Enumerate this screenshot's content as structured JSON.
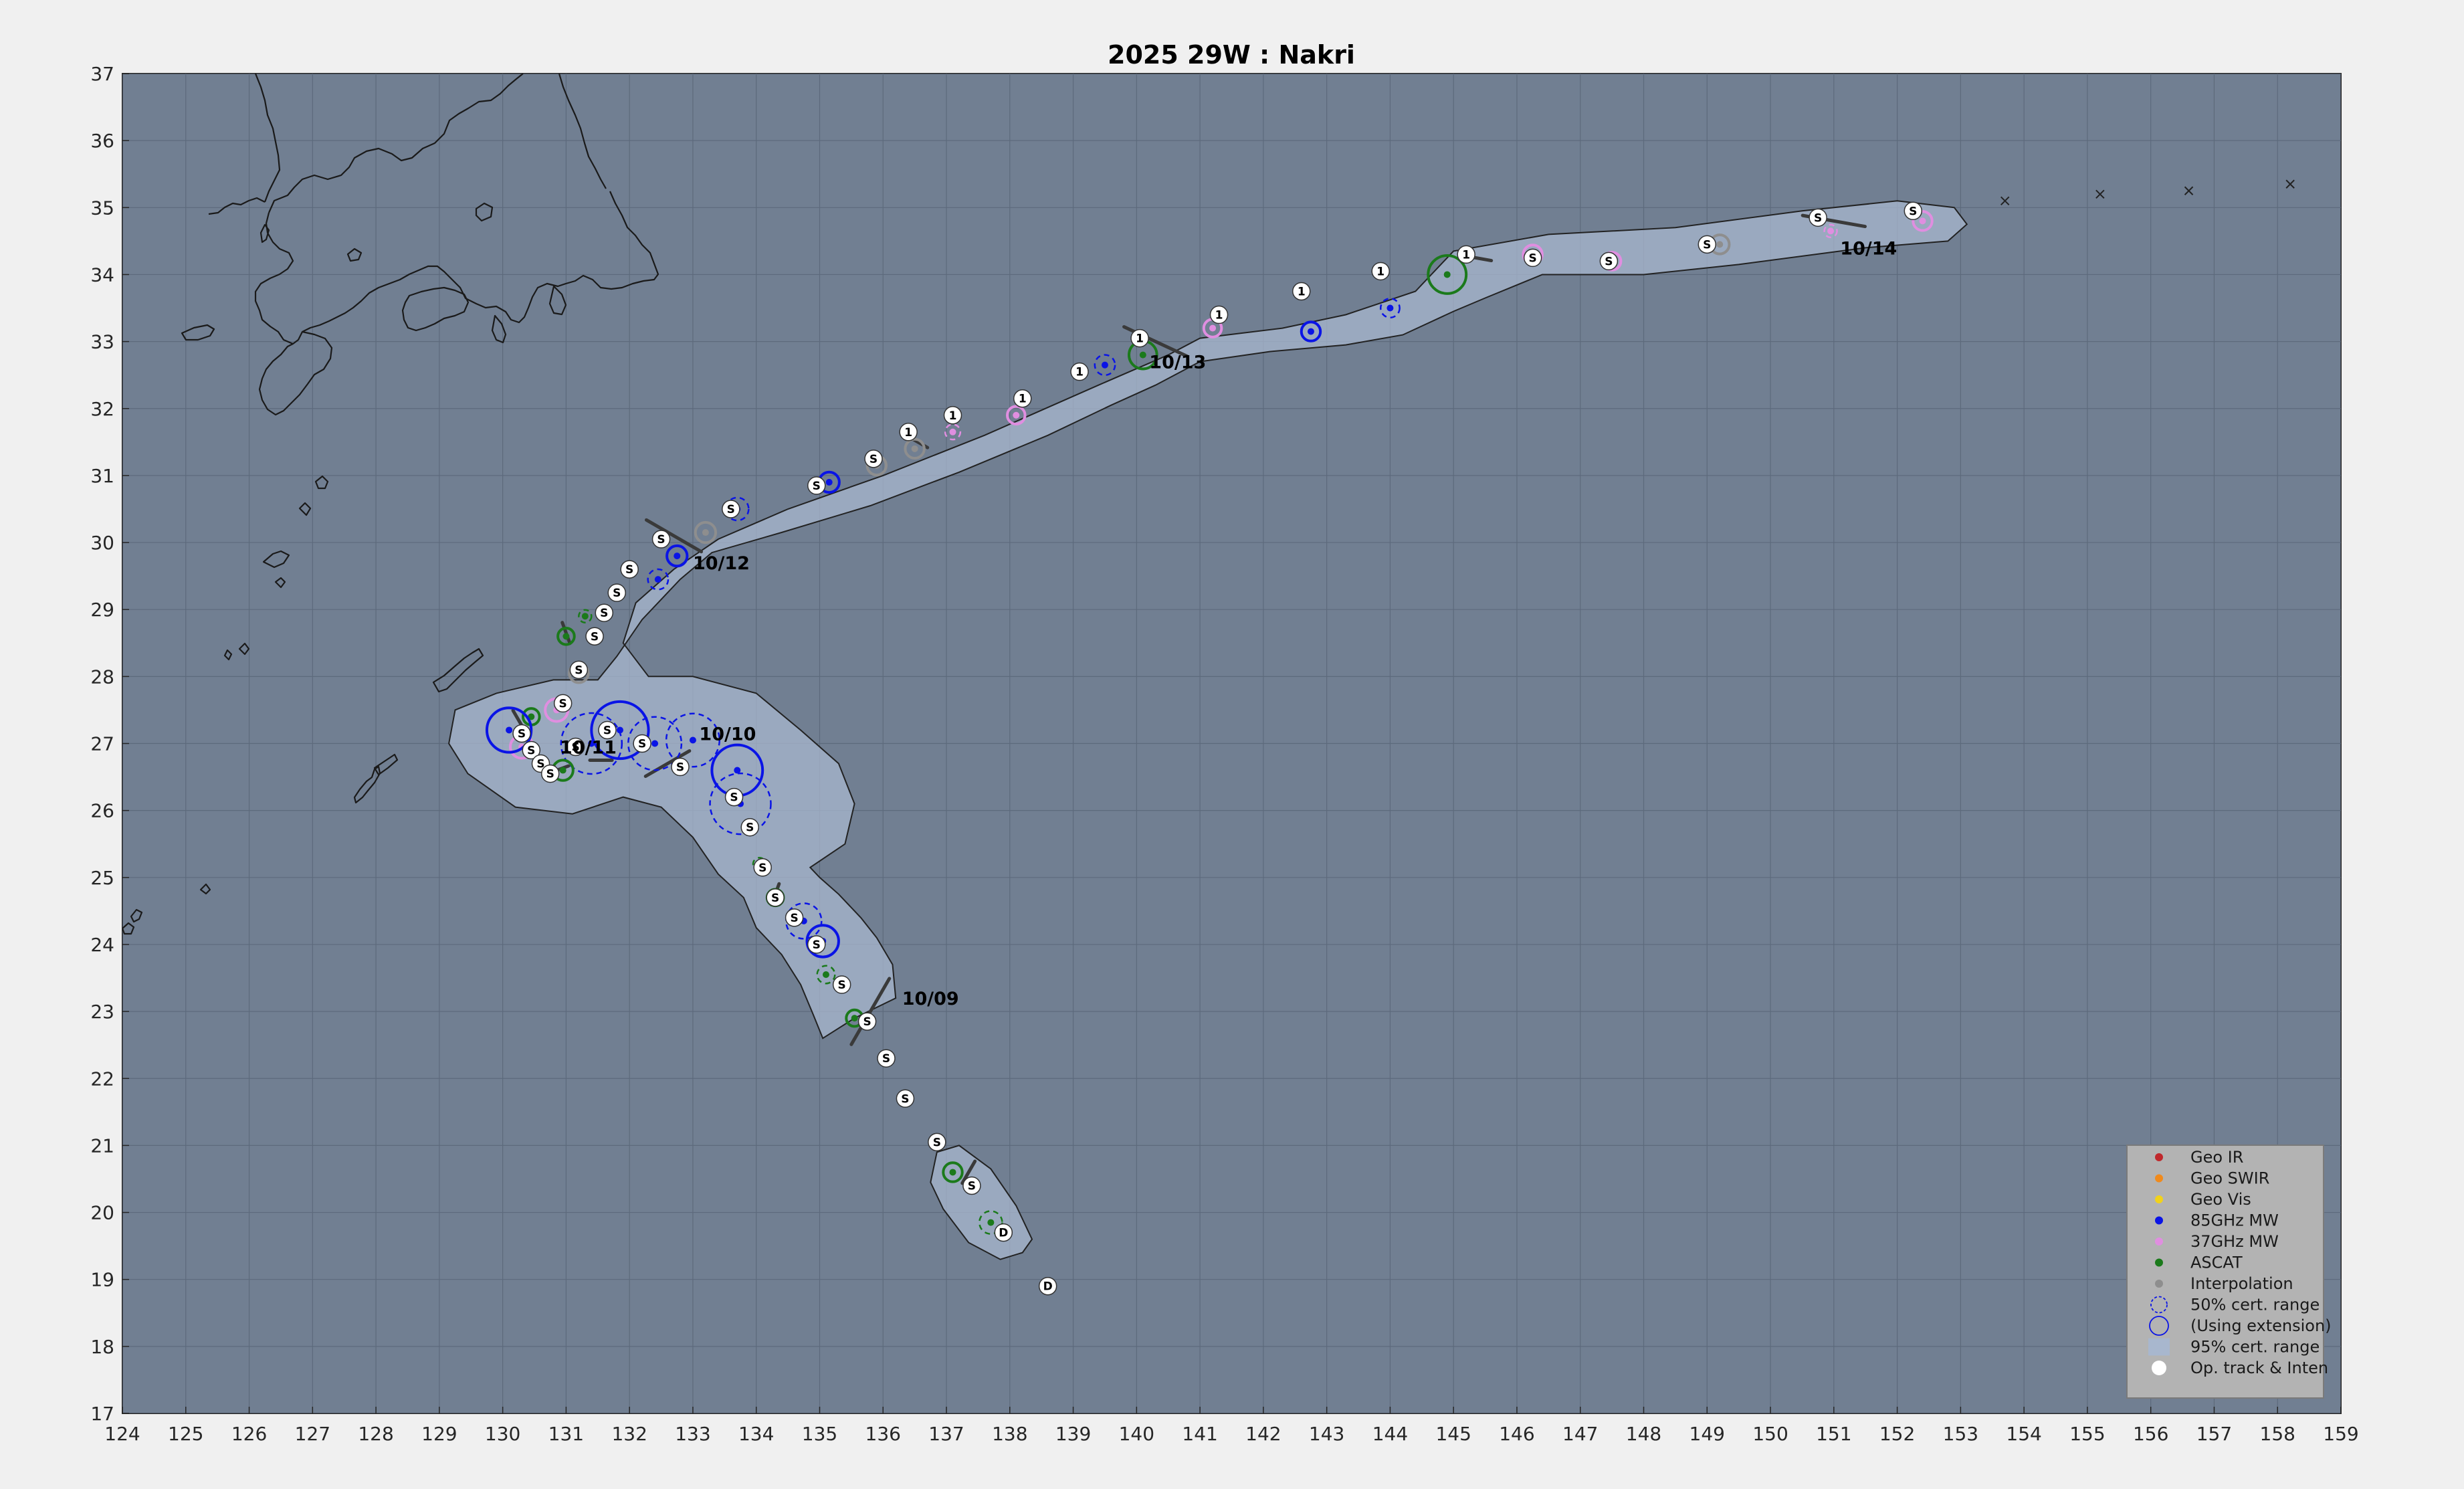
{
  "title": "2025  29W :  Nakri",
  "axes": {
    "xlim": [
      124,
      159
    ],
    "ylim": [
      17,
      37
    ],
    "xticks": [
      "124",
      "125",
      "126",
      "127",
      "128",
      "129",
      "130",
      "131",
      "132",
      "133",
      "134",
      "135",
      "136",
      "137",
      "138",
      "139",
      "140",
      "141",
      "142",
      "143",
      "144",
      "145",
      "146",
      "147",
      "148",
      "149",
      "150",
      "151",
      "152",
      "153",
      "154",
      "155",
      "156",
      "157",
      "158",
      "159"
    ],
    "yticks": [
      "17",
      "18",
      "19",
      "20",
      "21",
      "22",
      "23",
      "24",
      "25",
      "26",
      "27",
      "28",
      "29",
      "30",
      "31",
      "32",
      "33",
      "34",
      "35",
      "36",
      "37"
    ],
    "grid": true
  },
  "colors": {
    "ocean": "#717f92",
    "cone": "#a8b7ce",
    "geo_ir": "#c0282c",
    "geo_swir": "#f08a1c",
    "geo_vis": "#f2d21a",
    "mw85": "#0a14e6",
    "mw37": "#e08ee0",
    "ascat": "#1b7a1b",
    "interp": "#8e8e8e"
  },
  "legend": {
    "position": "bottom-right",
    "items": [
      {
        "label": "Geo IR",
        "marker": "dot",
        "color": "#c0282c"
      },
      {
        "label": "Geo SWIR",
        "marker": "dot",
        "color": "#f08a1c"
      },
      {
        "label": "Geo Vis",
        "marker": "dot",
        "color": "#f2d21a"
      },
      {
        "label": "85GHz MW",
        "marker": "dot",
        "color": "#0a14e6"
      },
      {
        "label": "37GHz MW",
        "marker": "dot",
        "color": "#e08ee0"
      },
      {
        "label": "ASCAT",
        "marker": "dot",
        "color": "#1b7a1b"
      },
      {
        "label": "Interpolation",
        "marker": "dot",
        "color": "#8e8e8e"
      },
      {
        "label": "50% cert. range",
        "marker": "dashed-circle",
        "color": "#0a14e6"
      },
      {
        "label": "(Using extension)",
        "marker": "solid-circle",
        "color": "#0a14e6"
      },
      {
        "label": "95% cert. range",
        "marker": "square",
        "color": "#a8b7ce"
      },
      {
        "label": "Op. track & Inten",
        "marker": "white-dot",
        "color": "#ffffff"
      }
    ]
  },
  "date_labels": [
    {
      "text": "10/09",
      "lon": 136.3,
      "lat": 23.1
    },
    {
      "text": "10/10",
      "lon": 133.1,
      "lat": 27.05
    },
    {
      "text": "10/11",
      "lon": 130.9,
      "lat": 26.85
    },
    {
      "text": "10/12",
      "lon": 133.0,
      "lat": 29.6
    },
    {
      "text": "10/13",
      "lon": 140.2,
      "lat": 32.6
    },
    {
      "text": "10/14",
      "lon": 151.1,
      "lat": 34.3
    }
  ],
  "operational_track": [
    {
      "lon": 138.6,
      "lat": 18.9,
      "label": "D"
    },
    {
      "lon": 137.9,
      "lat": 19.7,
      "label": "D"
    },
    {
      "lon": 137.4,
      "lat": 20.4,
      "label": "S"
    },
    {
      "lon": 136.85,
      "lat": 21.05,
      "label": "S"
    },
    {
      "lon": 136.35,
      "lat": 21.7,
      "label": "S"
    },
    {
      "lon": 136.05,
      "lat": 22.3,
      "label": "S"
    },
    {
      "lon": 135.75,
      "lat": 22.85,
      "label": "S"
    },
    {
      "lon": 135.35,
      "lat": 23.4,
      "label": "S"
    },
    {
      "lon": 134.95,
      "lat": 24.0,
      "label": "S"
    },
    {
      "lon": 134.6,
      "lat": 24.4,
      "label": "S"
    },
    {
      "lon": 134.3,
      "lat": 24.7,
      "label": "S"
    },
    {
      "lon": 134.1,
      "lat": 25.15,
      "label": "S"
    },
    {
      "lon": 133.9,
      "lat": 25.75,
      "label": "S"
    },
    {
      "lon": 133.65,
      "lat": 26.2,
      "label": "S"
    },
    {
      "lon": 132.8,
      "lat": 26.65,
      "label": "S"
    },
    {
      "lon": 132.2,
      "lat": 27.0,
      "label": "S"
    },
    {
      "lon": 131.65,
      "lat": 27.2,
      "label": "S"
    },
    {
      "lon": 131.15,
      "lat": 26.95,
      "label": "S"
    },
    {
      "lon": 130.45,
      "lat": 26.9,
      "label": "S"
    },
    {
      "lon": 130.6,
      "lat": 26.7,
      "label": "S"
    },
    {
      "lon": 130.75,
      "lat": 26.55,
      "label": "S"
    },
    {
      "lon": 130.3,
      "lat": 27.15,
      "label": "S"
    },
    {
      "lon": 130.95,
      "lat": 27.6,
      "label": "S"
    },
    {
      "lon": 131.2,
      "lat": 28.1,
      "label": "S"
    },
    {
      "lon": 131.45,
      "lat": 28.6,
      "label": "S"
    },
    {
      "lon": 131.6,
      "lat": 28.95,
      "label": "S"
    },
    {
      "lon": 131.8,
      "lat": 29.25,
      "label": "S"
    },
    {
      "lon": 132.0,
      "lat": 29.6,
      "label": "S"
    },
    {
      "lon": 132.5,
      "lat": 30.05,
      "label": "S"
    },
    {
      "lon": 133.6,
      "lat": 30.5,
      "label": "S"
    },
    {
      "lon": 134.95,
      "lat": 30.85,
      "label": "S"
    },
    {
      "lon": 135.85,
      "lat": 31.25,
      "label": "S"
    },
    {
      "lon": 136.4,
      "lat": 31.65,
      "label": "1"
    },
    {
      "lon": 137.1,
      "lat": 31.9,
      "label": "1"
    },
    {
      "lon": 138.2,
      "lat": 32.15,
      "label": "1"
    },
    {
      "lon": 139.1,
      "lat": 32.55,
      "label": "1"
    },
    {
      "lon": 140.05,
      "lat": 33.05,
      "label": "1"
    },
    {
      "lon": 141.3,
      "lat": 33.4,
      "label": "1"
    },
    {
      "lon": 142.6,
      "lat": 33.75,
      "label": "1"
    },
    {
      "lon": 143.85,
      "lat": 34.05,
      "label": "1"
    },
    {
      "lon": 145.2,
      "lat": 34.3,
      "label": "1"
    },
    {
      "lon": 146.25,
      "lat": 34.25,
      "label": "S"
    },
    {
      "lon": 147.45,
      "lat": 34.2,
      "label": "S"
    },
    {
      "lon": 149.0,
      "lat": 34.45,
      "label": "S"
    },
    {
      "lon": 150.75,
      "lat": 34.85,
      "label": "S"
    },
    {
      "lon": 152.25,
      "lat": 34.95,
      "label": "S"
    }
  ],
  "fixes": [
    {
      "type": "ascat",
      "lon": 137.7,
      "lat": 19.85,
      "r": 0.18,
      "dashed": true
    },
    {
      "type": "ascat",
      "lon": 137.1,
      "lat": 20.6,
      "r": 0.15,
      "dashed": false
    },
    {
      "type": "ascat",
      "lon": 135.55,
      "lat": 22.9,
      "r": 0.13,
      "dashed": false
    },
    {
      "type": "ascat",
      "lon": 135.1,
      "lat": 23.55,
      "r": 0.14,
      "dashed": true
    },
    {
      "type": "mw85",
      "lon": 135.05,
      "lat": 24.05,
      "r": 0.25,
      "dashed": false
    },
    {
      "type": "mw85",
      "lon": 134.75,
      "lat": 24.35,
      "r": 0.28,
      "dashed": true
    },
    {
      "type": "ascat",
      "lon": 134.3,
      "lat": 24.7,
      "r": 0.13,
      "dashed": false
    },
    {
      "type": "ascat",
      "lon": 134.05,
      "lat": 25.2,
      "r": 0.1,
      "dashed": true
    },
    {
      "type": "mw85",
      "lon": 133.75,
      "lat": 26.1,
      "r": 0.48,
      "dashed": true
    },
    {
      "type": "mw85",
      "lon": 133.7,
      "lat": 26.6,
      "r": 0.4,
      "dashed": false
    },
    {
      "type": "mw85",
      "lon": 133.0,
      "lat": 27.05,
      "r": 0.42,
      "dashed": true
    },
    {
      "type": "mw85",
      "lon": 132.4,
      "lat": 27.0,
      "r": 0.42,
      "dashed": true
    },
    {
      "type": "mw85",
      "lon": 131.85,
      "lat": 27.2,
      "r": 0.45,
      "dashed": false
    },
    {
      "type": "mw85",
      "lon": 131.4,
      "lat": 27.0,
      "r": 0.48,
      "dashed": true
    },
    {
      "type": "ascat",
      "lon": 130.95,
      "lat": 26.6,
      "r": 0.16,
      "dashed": false
    },
    {
      "type": "mw37",
      "lon": 130.3,
      "lat": 26.95,
      "r": 0.18,
      "dashed": false
    },
    {
      "type": "ascat",
      "lon": 130.45,
      "lat": 27.4,
      "r": 0.13,
      "dashed": false
    },
    {
      "type": "mw85",
      "lon": 130.1,
      "lat": 27.2,
      "r": 0.35,
      "dashed": false
    },
    {
      "type": "mw37",
      "lon": 130.85,
      "lat": 27.5,
      "r": 0.18,
      "dashed": false
    },
    {
      "type": "interp",
      "lon": 131.2,
      "lat": 28.05,
      "r": 0.15,
      "dashed": false
    },
    {
      "type": "ascat",
      "lon": 131.0,
      "lat": 28.6,
      "r": 0.13,
      "dashed": false
    },
    {
      "type": "ascat",
      "lon": 131.3,
      "lat": 28.9,
      "r": 0.1,
      "dashed": true
    },
    {
      "type": "mw85",
      "lon": 132.45,
      "lat": 29.45,
      "r": 0.16,
      "dashed": true
    },
    {
      "type": "mw85",
      "lon": 132.75,
      "lat": 29.8,
      "r": 0.16,
      "dashed": false
    },
    {
      "type": "interp",
      "lon": 133.2,
      "lat": 30.15,
      "r": 0.16,
      "dashed": false
    },
    {
      "type": "mw85",
      "lon": 133.7,
      "lat": 30.5,
      "r": 0.18,
      "dashed": true
    },
    {
      "type": "mw85",
      "lon": 135.15,
      "lat": 30.9,
      "r": 0.16,
      "dashed": false
    },
    {
      "type": "interp",
      "lon": 135.9,
      "lat": 31.15,
      "r": 0.15,
      "dashed": false
    },
    {
      "type": "interp",
      "lon": 136.5,
      "lat": 31.4,
      "r": 0.15,
      "dashed": false
    },
    {
      "type": "mw37",
      "lon": 137.1,
      "lat": 31.65,
      "r": 0.12,
      "dashed": true
    },
    {
      "type": "mw37",
      "lon": 138.1,
      "lat": 31.9,
      "r": 0.14,
      "dashed": false
    },
    {
      "type": "mw85",
      "lon": 139.5,
      "lat": 32.65,
      "r": 0.16,
      "dashed": true
    },
    {
      "type": "ascat",
      "lon": 140.1,
      "lat": 32.8,
      "r": 0.22,
      "dashed": false
    },
    {
      "type": "mw37",
      "lon": 141.2,
      "lat": 33.2,
      "r": 0.14,
      "dashed": false
    },
    {
      "type": "mw85",
      "lon": 142.75,
      "lat": 33.15,
      "r": 0.15,
      "dashed": false
    },
    {
      "type": "mw85",
      "lon": 144.0,
      "lat": 33.5,
      "r": 0.15,
      "dashed": true
    },
    {
      "type": "ascat",
      "lon": 144.9,
      "lat": 34.0,
      "r": 0.3,
      "dashed": false
    },
    {
      "type": "mw37",
      "lon": 146.25,
      "lat": 34.3,
      "r": 0.15,
      "dashed": false
    },
    {
      "type": "mw37",
      "lon": 147.5,
      "lat": 34.2,
      "r": 0.14,
      "dashed": false
    },
    {
      "type": "interp",
      "lon": 149.2,
      "lat": 34.45,
      "r": 0.15,
      "dashed": false
    },
    {
      "type": "mw37",
      "lon": 150.95,
      "lat": 34.65,
      "r": 0.1,
      "dashed": true
    },
    {
      "type": "mw37",
      "lon": 152.4,
      "lat": 34.8,
      "r": 0.15,
      "dashed": false
    }
  ],
  "wind_bars": [
    {
      "lon": 135.8,
      "lat": 23.0,
      "angle": -30,
      "len": 1.2
    },
    {
      "lon": 137.35,
      "lat": 20.6,
      "angle": -30,
      "len": 0.4
    },
    {
      "lon": 134.3,
      "lat": 24.75,
      "angle": -20,
      "len": 0.35
    },
    {
      "lon": 132.6,
      "lat": 26.7,
      "angle": -60,
      "len": 0.8
    },
    {
      "lon": 131.55,
      "lat": 26.75,
      "angle": -90,
      "len": 0.35
    },
    {
      "lon": 130.85,
      "lat": 26.6,
      "angle": -70,
      "len": 0.4
    },
    {
      "lon": 130.25,
      "lat": 27.35,
      "angle": 30,
      "len": 0.35
    },
    {
      "lon": 131.0,
      "lat": 28.65,
      "angle": 20,
      "len": 0.35
    },
    {
      "lon": 132.7,
      "lat": 30.1,
      "angle": 60,
      "len": 1.0
    },
    {
      "lon": 136.55,
      "lat": 31.5,
      "angle": 60,
      "len": 0.35
    },
    {
      "lon": 140.3,
      "lat": 33.0,
      "angle": 65,
      "len": 1.1
    },
    {
      "lon": 145.35,
      "lat": 34.25,
      "angle": 80,
      "len": 0.5
    },
    {
      "lon": 151.0,
      "lat": 34.8,
      "angle": 80,
      "len": 1.0
    }
  ],
  "future_marks": [
    {
      "lon": 153.7,
      "lat": 35.1
    },
    {
      "lon": 155.2,
      "lat": 35.2
    },
    {
      "lon": 156.6,
      "lat": 35.25
    },
    {
      "lon": 158.2,
      "lat": 35.35
    }
  ]
}
